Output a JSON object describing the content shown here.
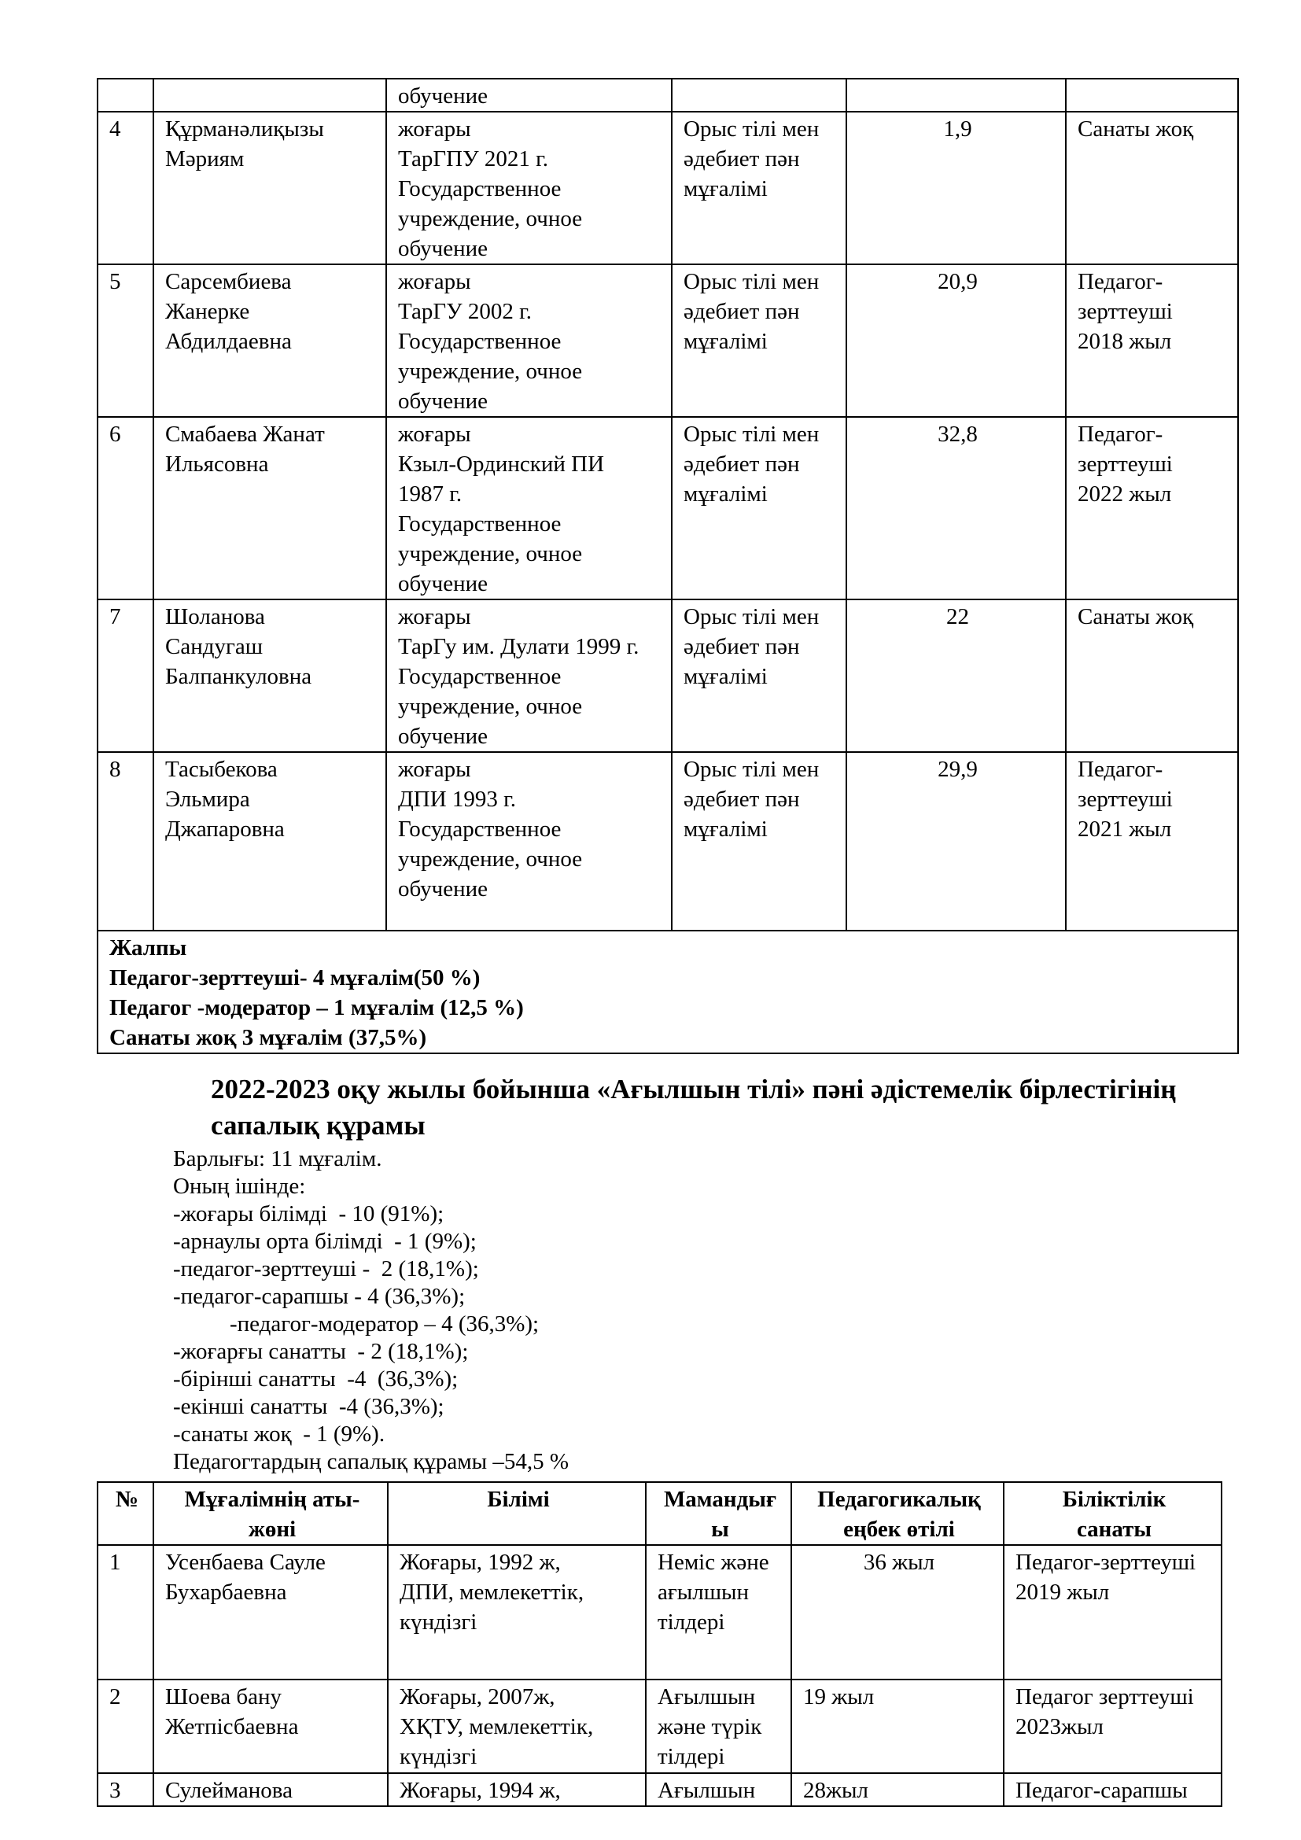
{
  "table1": {
    "rows": [
      {
        "num": "",
        "name": "",
        "education": "обучение",
        "specialty": "",
        "experience": "",
        "category": ""
      },
      {
        "num": "4",
        "name": "Құрманәлиқызы\nМәриям",
        "education": "жоғары\nТарГПУ 2021 г.\nГосударственное\nучреждение, очное\nобучение",
        "specialty": "Орыс тілі мен\nәдебиет пән\nмұғалімі",
        "experience": "1,9",
        "category": "Санаты жоқ"
      },
      {
        "num": "5",
        "name": "Сарсембиева\nЖанерке\nАбдилдаевна",
        "education": "жоғары\nТарГУ  2002 г.\nГосударственное\nучреждение, очное\nобучение",
        "specialty": "Орыс тілі мен\nәдебиет пән\nмұғалімі",
        "experience": "20,9",
        "category": "Педагог-\nзерттеуші\n2018 жыл"
      },
      {
        "num": "6",
        "name": "Смабаева Жанат\nИльясовна",
        "education": "жоғары\nКзыл-Ординский ПИ\n1987 г.\nГосударственное\nучреждение, очное\nобучение",
        "specialty": "Орыс тілі мен\nәдебиет пән\nмұғалімі",
        "experience": "32,8",
        "category": "Педагог-\nзерттеуші\n2022 жыл"
      },
      {
        "num": "7",
        "name": "Шоланова\nСандугаш\nБалпанкуловна",
        "education": "жоғары\nТарГу им. Дулати 1999 г.\nГосударственное\nучреждение, очное\nобучение",
        "specialty": "Орыс тілі мен\nәдебиет пән\nмұғалімі",
        "experience": "22",
        "category": "Санаты жоқ"
      },
      {
        "num": "8",
        "name": "Тасыбекова\nЭльмира\nДжапаровна",
        "education": "жоғары\nДПИ 1993 г.\nГосударственное\nучреждение, очное\nобучение",
        "specialty": "Орыс тілі мен\nәдебиет пән\nмұғалімі",
        "experience": "29,9",
        "category": "Педагог-\nзерттеуші\n 2021 жыл"
      }
    ],
    "summary": [
      "Жалпы",
      "Педагог-зерттеуші- 4 мұғалім(50 %)",
      "Педагог -модератор – 1 мұғалім (12,5 %)",
      "Санаты жоқ 3 мұғалім (37,5%)"
    ]
  },
  "section2": {
    "heading": "2022-2023  оқу жылы бойынша «Ағылшын тілі» пәні әдістемелік бірлестігінің сапалық құрамы",
    "stats": [
      "Барлығы: 11 мұғалім.",
      "Оның ішінде:",
      "-жоғары білімді  - 10 (91%);",
      "-арнаулы орта білімді  - 1 (9%);",
      "-педагог-зерттеуші -  2 (18,1%);",
      "-педагог-сарапшы - 4 (36,3%);",
      "-педагог-модератор – 4 (36,3%);",
      "-жоғарғы санатты  - 2 (18,1%);",
      "-бірінші санатты  -4  (36,3%);",
      "-екінші санатты  -4 (36,3%);",
      "-санаты жоқ  - 1 (9%).",
      "Педагогтардың сапалық құрамы –54,5 %"
    ]
  },
  "table2": {
    "headers": [
      "№",
      "Мұғалімнің аты-\nжөні",
      "Білімі",
      "Мамандығ\nы",
      "Педагогикалық\nеңбек өтілі",
      "Біліктілік\nсанаты"
    ],
    "rows": [
      {
        "num": "1",
        "name": "Усенбаева Сауле\nБухарбаевна",
        "education": "Жоғары, 1992 ж,\nДПИ, мемлекеттік,\nкүндізгі",
        "specialty": "Неміс және\nағылшын\nтілдері",
        "experience": "36 жыл",
        "category": "Педагог-зерттеуші\n2019 жыл"
      },
      {
        "num": "2",
        "name": "Шоева бану\nЖетпісбаевна",
        "education": "Жоғары, 2007ж,\nХҚТУ, мемлекеттік,\nкүндізгі",
        "specialty": "Ағылшын\nжәне түрік\nтілдері",
        "experience": "19 жыл",
        "category": "Педагог зерттеуші\n2023жыл"
      },
      {
        "num": "3",
        "name": "Сулейманова",
        "education": "Жоғары, 1994 ж,",
        "specialty": "Ағылшын",
        "experience": "28жыл",
        "category": "Педагог-сарапшы"
      }
    ]
  }
}
